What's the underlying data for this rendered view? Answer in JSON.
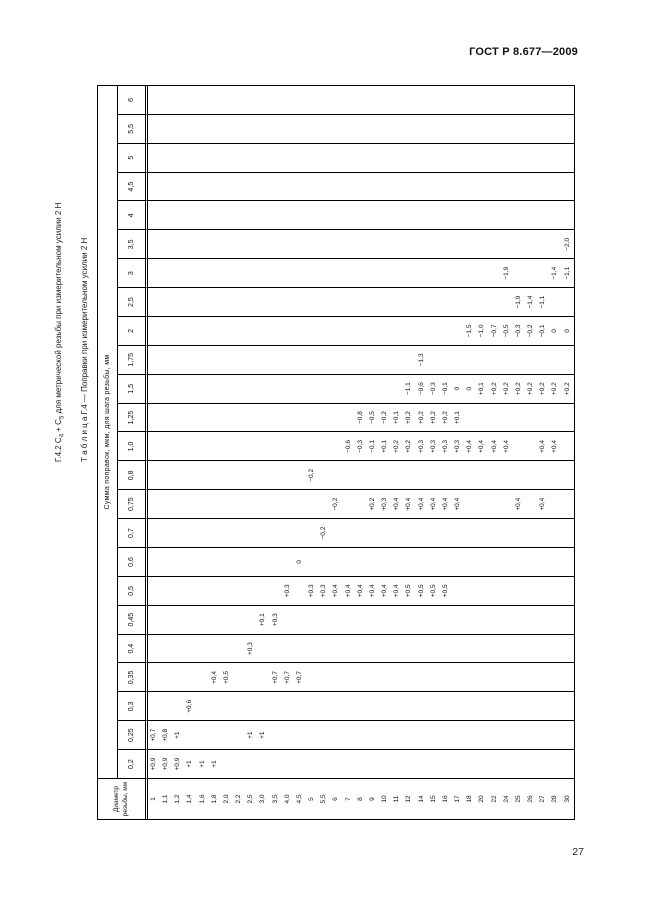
{
  "doc": {
    "header": "ГОСТ Р 8.677—2009",
    "page_number": "27",
    "title1_prefix": "Г.4.2 С",
    "title1_sub1": "4",
    "title1_mid": " + С",
    "title1_sub2": "5",
    "title1_rest": " для метрической резьбы при измерительном усилии 2 Н",
    "title2": "Т а б л и ц а   Г.4 — Поправки при измерительном усилии 2 Н"
  },
  "table": {
    "corner_header_line1": "Диаметр",
    "corner_header_line2": "резьбы, мм",
    "span_header": "Сумма поправок, мкм, для шага резьбы, мм",
    "pitches": [
      "0,2",
      "0,25",
      "0,3",
      "0,35",
      "0,4",
      "0,45",
      "0,5",
      "0,6",
      "0,7",
      "0,75",
      "0,8",
      "1,0",
      "1,25",
      "1,5",
      "1,75",
      "2",
      "2,5",
      "3",
      "3,5",
      "4",
      "4,5",
      "5",
      "5,5",
      "6"
    ],
    "diameters": [
      "1",
      "1,1",
      "1,2",
      "1,4",
      "1,6",
      "1,8",
      "2,0",
      "2,2",
      "2,5",
      "3,0",
      "3,5",
      "4,0",
      "4,5",
      "5",
      "5,5",
      "6",
      "7",
      "8",
      "9",
      "10",
      "11",
      "12",
      "14",
      "15",
      "16",
      "17",
      "18",
      "20",
      "22",
      "24",
      "25",
      "26",
      "27",
      "28",
      "30"
    ],
    "values": {
      "1|0,2": "+0,9",
      "1,1|0,2": "+0,9",
      "1,2|0,2": "+0,9",
      "1,4|0,2": "+1",
      "1,6|0,2": "+1",
      "1,8|0,2": "+1",
      "1|0,25": "+0,7",
      "1,1|0,25": "+0,8",
      "1,2|0,25": "+1",
      "2,5|0,25": "+1",
      "3,0|0,25": "+1",
      "1,4|0,3": "+0,6",
      "1,8|0,35": "+0,4",
      "2,0|0,35": "+0,5",
      "3,5|0,35": "+0,7",
      "4,0|0,35": "+0,7",
      "4,5|0,35": "+0,7",
      "2,5|0,4": "+0,3",
      "3,0|0,45": "+0,1",
      "3,5|0,45": "+0,3",
      "4,0|0,5": "+0,3",
      "5|0,5": "+0,3",
      "5,5|0,5": "+0,3",
      "6|0,5": "+0,4",
      "7|0,5": "+0,4",
      "8|0,5": "+0,4",
      "9|0,5": "+0,4",
      "10|0,5": "+0,4",
      "11|0,5": "+0,4",
      "12|0,5": "+0,5",
      "14|0,5": "+0,5",
      "15|0,5": "+0,5",
      "16|0,5": "+0,5",
      "4,5|0,6": "0",
      "5,5|0,7": "−0,2",
      "6|0,75": "−0,2",
      "9|0,75": "+0,2",
      "10|0,75": "+0,3",
      "11|0,75": "+0,4",
      "12|0,75": "+0,4",
      "14|0,75": "+0,4",
      "15|0,75": "+0,4",
      "16|0,75": "+0,4",
      "17|0,75": "+0,4",
      "25|0,75": "+0,4",
      "27|0,75": "+0,4",
      "5|0,8": "−0,2",
      "7|1,0": "−0,6",
      "8|1,0": "−0,3",
      "9|1,0": "−0,1",
      "10|1,0": "+0,1",
      "11|1,0": "+0,2",
      "12|1,0": "+0,2",
      "14|1,0": "+0,3",
      "15|1,0": "+0,3",
      "16|1,0": "+0,3",
      "17|1,0": "+0,3",
      "18|1,0": "+0,4",
      "20|1,0": "+0,4",
      "22|1,0": "+0,4",
      "24|1,0": "+0,4",
      "27|1,0": "+0,4",
      "28|1,0": "+0,4",
      "8|1,25": "−0,8",
      "9|1,25": "−0,5",
      "10|1,25": "−0,2",
      "11|1,25": "+0,1",
      "12|1,25": "+0,2",
      "14|1,25": "+0,2",
      "15|1,25": "+0,2",
      "16|1,25": "+0,2",
      "17|1,25": "+0,1",
      "12|1,5": "−1,1",
      "14|1,5": "−0,6",
      "15|1,5": "−0,3",
      "16|1,5": "−0,1",
      "17|1,5": "0",
      "18|1,5": "0",
      "20|1,5": "+0,1",
      "22|1,5": "+0,2",
      "24|1,5": "+0,2",
      "25|1,5": "+0,2",
      "26|1,5": "+0,2",
      "27|1,5": "+0,2",
      "28|1,5": "+0,2",
      "30|1,5": "+0,2",
      "14|1,75": "−1,3",
      "18|2": "−1,5",
      "20|2": "−1,0",
      "22|2": "−0,7",
      "24|2": "−0,5",
      "25|2": "−0,3",
      "26|2": "−0,2",
      "27|2": "−0,1",
      "28|2": "0",
      "30|2": "0",
      "25|2,5": "−1,9",
      "26|2,5": "−1,4",
      "27|2,5": "−1,1",
      "24|3": "−1,9",
      "28|3": "−1,4",
      "30|3": "−1,1",
      "30|3,5": "−2,0"
    }
  }
}
